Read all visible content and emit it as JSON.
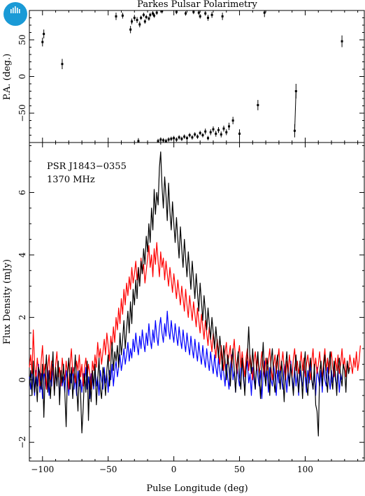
{
  "logo": {
    "text": "CSIRO",
    "color": "#1a9ad6"
  },
  "colors": {
    "total": "#000000",
    "linear": "#ff0000",
    "circular": "#0000ff"
  },
  "chart_data": [
    {
      "type": "scatter",
      "name": "position-angle",
      "title": "Parkes Pulsar Polarimetry",
      "ylabel": "P.A. (deg.)",
      "xlim": [
        -110,
        145
      ],
      "ylim": [
        -90,
        90
      ],
      "yticks": [
        -50,
        0,
        50
      ],
      "yticklabels": [
        "−50",
        "0",
        "50"
      ],
      "points": [
        {
          "x": -100,
          "y": 47,
          "err": 6
        },
        {
          "x": -99,
          "y": 58,
          "err": 6
        },
        {
          "x": -85,
          "y": 17,
          "err": 7
        },
        {
          "x": -44,
          "y": 82,
          "err": 5
        },
        {
          "x": -39,
          "y": 83,
          "err": 4
        },
        {
          "x": -33,
          "y": 64,
          "err": 5
        },
        {
          "x": -32,
          "y": 75,
          "err": 4
        },
        {
          "x": -30,
          "y": 80,
          "err": 4
        },
        {
          "x": -28,
          "y": 77,
          "err": 4
        },
        {
          "x": -26,
          "y": 71,
          "err": 4
        },
        {
          "x": -25,
          "y": 80,
          "err": 3
        },
        {
          "x": -23,
          "y": 84,
          "err": 3
        },
        {
          "x": -22,
          "y": 75,
          "err": 3
        },
        {
          "x": -21,
          "y": 81,
          "err": 3
        },
        {
          "x": -19,
          "y": 79,
          "err": 3
        },
        {
          "x": -18,
          "y": 84,
          "err": 3
        },
        {
          "x": -16,
          "y": 86,
          "err": 3
        },
        {
          "x": -15,
          "y": 83,
          "err": 3
        },
        {
          "x": -13,
          "y": 87,
          "err": 3
        },
        {
          "x": -9,
          "y": 89,
          "err": 3
        },
        {
          "x": 2,
          "y": 88,
          "err": 3
        },
        {
          "x": 9,
          "y": 86,
          "err": 3
        },
        {
          "x": 15,
          "y": 88,
          "err": 3
        },
        {
          "x": 19,
          "y": 87,
          "err": 3
        },
        {
          "x": 20,
          "y": 82,
          "err": 3
        },
        {
          "x": 24,
          "y": 86,
          "err": 3
        },
        {
          "x": 26,
          "y": 80,
          "err": 4
        },
        {
          "x": 29,
          "y": 84,
          "err": 4
        },
        {
          "x": 37,
          "y": 82,
          "err": 5
        },
        {
          "x": 69,
          "y": 87,
          "err": 6
        },
        {
          "x": 128,
          "y": 48,
          "err": 8
        },
        {
          "x": -27,
          "y": -88,
          "err": 4
        },
        {
          "x": -12,
          "y": -88,
          "err": 3
        },
        {
          "x": -10,
          "y": -86,
          "err": 3
        },
        {
          "x": -8,
          "y": -87,
          "err": 3
        },
        {
          "x": -6,
          "y": -88,
          "err": 3
        },
        {
          "x": -4,
          "y": -86,
          "err": 3
        },
        {
          "x": -2,
          "y": -85,
          "err": 3
        },
        {
          "x": 0,
          "y": -84,
          "err": 3
        },
        {
          "x": 2,
          "y": -86,
          "err": 3
        },
        {
          "x": 4,
          "y": -83,
          "err": 3
        },
        {
          "x": 6,
          "y": -85,
          "err": 3
        },
        {
          "x": 8,
          "y": -82,
          "err": 3
        },
        {
          "x": 10,
          "y": -84,
          "err": 3
        },
        {
          "x": 12,
          "y": -80,
          "err": 3
        },
        {
          "x": 14,
          "y": -83,
          "err": 3
        },
        {
          "x": 16,
          "y": -79,
          "err": 3
        },
        {
          "x": 18,
          "y": -82,
          "err": 3
        },
        {
          "x": 20,
          "y": -77,
          "err": 3
        },
        {
          "x": 22,
          "y": -80,
          "err": 3
        },
        {
          "x": 24,
          "y": -75,
          "err": 4
        },
        {
          "x": 26,
          "y": -84,
          "err": 3
        },
        {
          "x": 28,
          "y": -76,
          "err": 4
        },
        {
          "x": 30,
          "y": -72,
          "err": 4
        },
        {
          "x": 32,
          "y": -78,
          "err": 4
        },
        {
          "x": 34,
          "y": -73,
          "err": 4
        },
        {
          "x": 36,
          "y": -79,
          "err": 4
        },
        {
          "x": 38,
          "y": -71,
          "err": 4
        },
        {
          "x": 40,
          "y": -76,
          "err": 4
        },
        {
          "x": 42,
          "y": -68,
          "err": 5
        },
        {
          "x": 45,
          "y": -60,
          "err": 5
        },
        {
          "x": 50,
          "y": -78,
          "err": 6
        },
        {
          "x": 64,
          "y": -39,
          "err": 7
        },
        {
          "x": 92,
          "y": -74,
          "err": 9
        },
        {
          "x": 93,
          "y": -20,
          "err": 10
        }
      ],
      "connector": {
        "x": [
          92,
          93
        ],
        "y": [
          -74,
          -20
        ]
      }
    },
    {
      "type": "line",
      "name": "profile",
      "annotations": [
        "PSR J1843−0355",
        "1370 MHz"
      ],
      "xlabel": "Pulse Longitude (deg)",
      "ylabel": "Flux Density (mJy)",
      "xlim": [
        -110,
        145
      ],
      "ylim": [
        -2.6,
        7.6
      ],
      "xticks": [
        -100,
        -50,
        0,
        50,
        100
      ],
      "xticklabels": [
        "−100",
        "−50",
        "0",
        "50",
        "100"
      ],
      "yticks": [
        -2,
        0,
        2,
        4,
        6
      ],
      "yticklabels": [
        "−2",
        "0",
        "2",
        "4",
        "6"
      ],
      "x_range": [
        -110,
        145
      ],
      "x_step": 1,
      "series": [
        {
          "key": "total",
          "color": "#000000",
          "values": [
            -0.2,
            0.3,
            -0.5,
            0.6,
            -0.4,
            0.1,
            -0.7,
            0.4,
            0.2,
            -0.3,
            0.5,
            -1.2,
            0.1,
            0.8,
            -0.4,
            0.3,
            -0.6,
            0.2,
            0.9,
            -0.5,
            0.4,
            -0.2,
            0.6,
            -0.8,
            0.3,
            -0.1,
            0.5,
            -0.4,
            -1.5,
            0.2,
            0.7,
            -0.3,
            0.4,
            -0.6,
            0.1,
            0.8,
            -0.2,
            -1.0,
            0.3,
            -0.5,
            -1.7,
            -0.9,
            0.2,
            -0.4,
            0.6,
            -1.3,
            0.1,
            -0.7,
            0.3,
            -0.2,
            0.5,
            -0.8,
            0.0,
            0.7,
            -0.3,
            -0.6,
            0.4,
            0.1,
            -0.5,
            0.3,
            0.8,
            -0.2,
            0.5,
            1.2,
            0.3,
            0.9,
            0.6,
            1.1,
            0.4,
            1.5,
            0.8,
            1.3,
            1.9,
            1.0,
            1.6,
            2.2,
            1.5,
            2.5,
            1.8,
            2.9,
            2.4,
            3.2,
            2.6,
            3.6,
            3.0,
            3.8,
            3.4,
            4.2,
            3.7,
            4.6,
            4.1,
            5.0,
            4.4,
            5.5,
            4.8,
            6.1,
            5.3,
            6.0,
            5.6,
            6.8,
            7.3,
            6.2,
            5.5,
            6.5,
            5.9,
            5.1,
            6.3,
            5.4,
            4.8,
            5.7,
            5.0,
            4.4,
            5.2,
            4.5,
            3.9,
            4.9,
            4.2,
            3.6,
            4.5,
            3.9,
            3.3,
            4.1,
            3.5,
            2.9,
            3.8,
            3.2,
            2.6,
            3.4,
            2.8,
            2.2,
            3.1,
            2.5,
            1.9,
            2.7,
            2.2,
            1.6,
            2.3,
            1.8,
            1.3,
            2.0,
            1.5,
            1.0,
            1.7,
            1.2,
            0.7,
            1.4,
            0.9,
            0.3,
            1.1,
            0.6,
            0.0,
            0.8,
            0.4,
            -0.2,
            0.6,
            1.0,
            0.3,
            -0.4,
            0.5,
            0.9,
            0.1,
            -0.3,
            0.7,
            0.2,
            -0.5,
            0.4,
            0.8,
            1.7,
            0.6,
            0.2,
            1.0,
            0.3,
            -0.3,
            0.5,
            0.9,
            0.1,
            -0.6,
            0.4,
            1.2,
            0.2,
            -0.2,
            0.7,
            0.3,
            -0.5,
            0.6,
            1.0,
            0.0,
            -0.4,
            0.5,
            0.8,
            0.2,
            -0.3,
            0.6,
            0.1,
            -0.7,
            0.4,
            0.9,
            0.2,
            -0.2,
            0.5,
            0.0,
            -0.5,
            0.3,
            0.8,
            0.1,
            -0.4,
            0.6,
            0.2,
            -0.6,
            0.4,
            0.9,
            -0.1,
            -0.5,
            0.3,
            0.7,
            0.0,
            -0.3,
            0.5,
            -0.8,
            -1.0,
            -1.8,
            0.2,
            0.6,
            -0.2,
            0.4,
            0.8,
            0.1,
            -0.4,
            0.5,
            0.9,
            0.0,
            -0.3,
            0.6,
            0.2,
            -0.5,
            0.4,
            0.7,
            0.1,
            -0.2,
            0.5,
            0.3,
            -0.4,
            0.6,
            0.2,
            0.4
          ]
        },
        {
          "key": "linear",
          "color": "#ff0000",
          "values": [
            0.4,
            0.8,
            0.2,
            1.6,
            0.5,
            0.0,
            0.7,
            0.3,
            -0.2,
            0.6,
            1.1,
            0.2,
            0.5,
            -0.3,
            0.4,
            0.8,
            0.0,
            0.6,
            0.3,
            -0.4,
            0.5,
            0.9,
            0.1,
            0.4,
            -0.2,
            0.7,
            0.3,
            0.0,
            0.6,
            0.2,
            -0.3,
            0.5,
            1.0,
            0.2,
            0.4,
            -0.1,
            0.6,
            0.3,
            0.8,
            0.1,
            0.5,
            -0.2,
            0.4,
            0.7,
            0.1,
            0.5,
            0.2,
            -0.3,
            0.6,
            0.3,
            0.8,
            0.4,
            1.2,
            0.7,
            1.0,
            0.5,
            0.9,
            1.3,
            0.8,
            1.5,
            1.1,
            0.6,
            1.4,
            1.0,
            1.7,
            1.2,
            2.0,
            1.6,
            2.3,
            1.8,
            2.6,
            2.1,
            2.9,
            2.4,
            3.1,
            2.7,
            3.3,
            2.9,
            3.6,
            3.1,
            3.4,
            3.8,
            3.2,
            3.6,
            3.0,
            3.9,
            3.4,
            3.7,
            3.1,
            3.5,
            3.9,
            4.3,
            3.6,
            4.0,
            3.3,
            4.2,
            3.7,
            4.4,
            3.8,
            3.3,
            4.1,
            3.6,
            3.9,
            3.2,
            3.8,
            3.4,
            3.0,
            3.6,
            3.2,
            2.8,
            3.4,
            3.0,
            2.6,
            3.2,
            2.8,
            2.4,
            3.0,
            2.6,
            2.2,
            2.9,
            2.4,
            2.0,
            2.7,
            2.3,
            1.9,
            2.5,
            2.1,
            1.7,
            2.3,
            1.9,
            1.5,
            2.1,
            1.7,
            1.3,
            1.9,
            1.5,
            1.1,
            1.7,
            1.3,
            0.9,
            1.5,
            1.1,
            0.7,
            1.3,
            0.9,
            0.5,
            1.1,
            0.7,
            0.3,
            0.9,
            1.2,
            0.5,
            0.8,
            1.1,
            0.4,
            0.9,
            1.3,
            0.6,
            0.2,
            0.8,
            1.1,
            0.4,
            0.9,
            0.5,
            0.1,
            0.7,
            1.0,
            0.3,
            0.8,
            0.4,
            0.0,
            0.6,
            0.9,
            0.3,
            0.7,
            0.2,
            0.5,
            0.9,
            0.4,
            0.1,
            0.7,
            0.3,
            0.6,
            1.0,
            0.4,
            0.0,
            0.5,
            0.8,
            0.2,
            0.6,
            1.0,
            0.3,
            0.5,
            0.9,
            0.4,
            0.0,
            0.6,
            0.2,
            0.8,
            0.4,
            0.1,
            0.7,
            1.0,
            0.3,
            0.6,
            0.2,
            0.5,
            0.9,
            0.3,
            0.7,
            0.1,
            0.5,
            0.8,
            0.4,
            0.0,
            0.6,
            1.0,
            0.3,
            0.7,
            0.2,
            0.5,
            0.9,
            0.4,
            0.1,
            0.6,
            1.0,
            0.3,
            0.7,
            0.2,
            0.6,
            0.9,
            0.4,
            0.1,
            0.7,
            0.3,
            0.8,
            0.2,
            0.5,
            1.0,
            0.4,
            0.7,
            0.1,
            0.6,
            0.3,
            0.8,
            0.5,
            0.2,
            0.7,
            0.4,
            0.9,
            0.3,
            0.6,
            1.1
          ]
        },
        {
          "key": "circular",
          "color": "#0000ff",
          "values": [
            0.1,
            -0.3,
            0.4,
            0.0,
            -0.5,
            0.3,
            -0.2,
            0.5,
            -0.4,
            0.2,
            -0.6,
            0.3,
            0.0,
            -0.3,
            0.4,
            -0.5,
            0.1,
            -0.2,
            0.5,
            -0.4,
            0.2,
            -0.1,
            0.4,
            -0.6,
            0.3,
            -0.2,
            0.1,
            -0.4,
            0.3,
            0.0,
            -0.5,
            0.2,
            -0.1,
            0.4,
            -0.3,
            0.1,
            -0.5,
            0.3,
            -0.2,
            0.0,
            -0.4,
            0.2,
            -0.1,
            0.4,
            -0.3,
            0.1,
            -0.6,
            0.2,
            0.0,
            -0.3,
            0.4,
            -0.2,
            0.1,
            -0.5,
            0.3,
            0.0,
            -0.3,
            0.4,
            -0.1,
            0.2,
            -0.4,
            0.3,
            0.0,
            0.5,
            -0.2,
            0.3,
            0.6,
            0.1,
            0.4,
            0.8,
            0.3,
            0.6,
            1.0,
            0.5,
            0.8,
            1.2,
            0.6,
            1.0,
            0.7,
            1.3,
            0.9,
            1.5,
            1.1,
            0.8,
            1.4,
            1.0,
            1.6,
            1.2,
            0.9,
            1.5,
            1.1,
            1.8,
            1.3,
            1.0,
            1.6,
            1.2,
            1.9,
            1.4,
            1.1,
            1.7,
            2.0,
            1.5,
            1.2,
            1.8,
            1.4,
            2.2,
            1.6,
            1.3,
            1.9,
            1.5,
            1.2,
            1.8,
            1.4,
            1.1,
            1.7,
            1.3,
            1.0,
            1.6,
            1.2,
            0.9,
            1.5,
            1.1,
            0.8,
            1.4,
            1.0,
            0.7,
            1.3,
            0.9,
            0.6,
            1.2,
            0.8,
            0.5,
            1.1,
            0.7,
            0.4,
            1.0,
            0.6,
            0.3,
            0.9,
            0.5,
            0.2,
            0.8,
            0.4,
            0.1,
            0.7,
            0.3,
            0.0,
            0.6,
            0.2,
            -0.2,
            0.5,
            0.1,
            -0.3,
            0.4,
            0.8,
            0.0,
            0.3,
            -0.4,
            0.5,
            0.1,
            -0.2,
            0.4,
            0.7,
            0.0,
            -0.3,
            0.3,
            0.6,
            -0.1,
            0.2,
            -0.5,
            0.4,
            0.0,
            -0.3,
            0.5,
            0.1,
            -0.2,
            0.3,
            -0.6,
            0.2,
            0.6,
            -0.1,
            0.3,
            -0.4,
            0.4,
            0.0,
            -0.2,
            0.5,
            0.1,
            -0.5,
            0.3,
            -0.1,
            0.4,
            0.0,
            -0.3,
            0.5,
            0.2,
            -0.4,
            0.3,
            -0.1,
            0.6,
            0.1,
            -0.3,
            0.4,
            -0.2,
            0.2,
            -0.5,
            0.3,
            0.0,
            -0.2,
            0.4,
            0.1,
            -0.4,
            0.3,
            -0.1,
            0.5,
            0.0,
            -0.3,
            0.2,
            -0.5,
            0.4,
            0.1,
            -0.2,
            0.3,
            -0.4,
            0.5,
            0.0,
            -0.2,
            0.4,
            0.1,
            -0.3,
            0.3,
            -0.1,
            0.5,
            0.0,
            -0.2,
            0.3,
            -0.4,
            0.2,
            0.0
          ]
        }
      ]
    }
  ]
}
